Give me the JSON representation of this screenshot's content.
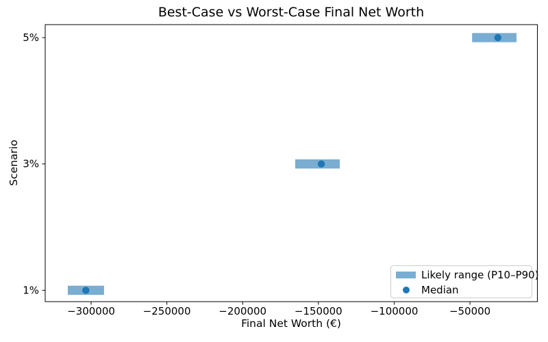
{
  "figure": {
    "background": "#ffffff",
    "text_color": "#000000",
    "spine_color": "#000000"
  },
  "chart_data": {
    "type": "bar",
    "orientation": "horizontal",
    "title": "Best-Case vs Worst-Case Final Net Worth",
    "xlabel": "Final Net Worth (€)",
    "ylabel": "Scenario",
    "categories": [
      "1%",
      "3%",
      "5%"
    ],
    "series": [
      {
        "name": "Likely range (P10–P90)",
        "type": "range_bar",
        "p10": [
          -315400,
          -165300,
          -48600
        ],
        "p90": [
          -291500,
          -135900,
          -19300
        ],
        "color": "#79add2"
      },
      {
        "name": "Median",
        "type": "scatter",
        "values": [
          -303500,
          -148100,
          -31600
        ],
        "color": "#1f77b4"
      }
    ],
    "xticks": [
      -300000,
      -250000,
      -200000,
      -150000,
      -100000,
      -50000
    ],
    "xtick_labels": [
      "−300000",
      "−250000",
      "−200000",
      "−150000",
      "−100000",
      "−50000"
    ],
    "xlim": [
      -330300,
      -5500
    ],
    "ylim": [
      -0.09,
      2.103
    ],
    "grid": false,
    "legend": {
      "position": "lower right",
      "items": [
        {
          "label": "Likely range (P10–P90)",
          "marker": "bar-swatch",
          "color": "#79add2"
        },
        {
          "label": "Median",
          "marker": "dot",
          "color": "#1f77b4"
        }
      ]
    }
  }
}
